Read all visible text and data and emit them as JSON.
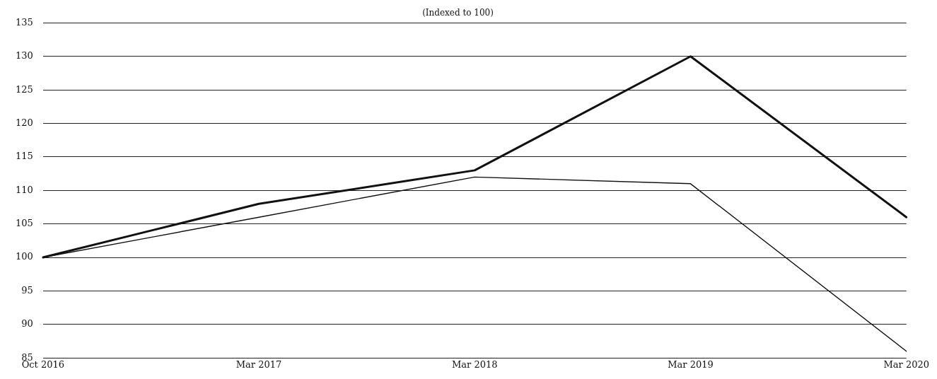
{
  "chart_data": {
    "type": "line",
    "subtitle": "(Indexed to 100)",
    "categories": [
      "Oct 2016",
      null,
      "Mar 2017",
      null,
      "Mar 2018",
      null,
      "Mar 2019",
      null,
      "Mar 2020"
    ],
    "series": [
      {
        "color": "#111111",
        "values": [
          100,
          104,
          108,
          null,
          113,
          null,
          130,
          null,
          106
        ]
      },
      {
        "color": "#111111",
        "values": [
          100,
          103,
          106,
          null,
          112,
          null,
          111,
          null,
          86
        ]
      }
    ],
    "ylim": [
      85,
      135
    ],
    "yticks": [
      85,
      90,
      95,
      100,
      105,
      110,
      115,
      120,
      125,
      130,
      135
    ],
    "grid": "y",
    "legend": false,
    "marker": "none",
    "line_style": "solid"
  }
}
